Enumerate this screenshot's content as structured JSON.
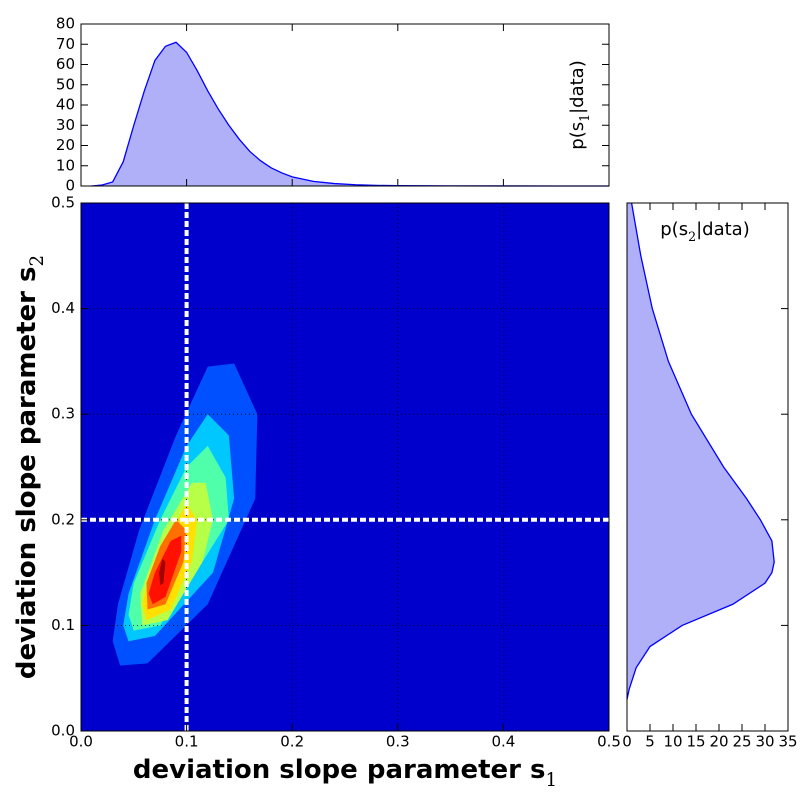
{
  "chart_data": [
    {
      "type": "area",
      "orientation": "vertical",
      "annotation": [
        "p(s",
        "1",
        "|data)"
      ],
      "x": [
        0.01,
        0.02,
        0.03,
        0.04,
        0.05,
        0.06,
        0.07,
        0.08,
        0.09,
        0.1,
        0.11,
        0.12,
        0.13,
        0.14,
        0.15,
        0.16,
        0.17,
        0.18,
        0.19,
        0.2,
        0.22,
        0.24,
        0.26,
        0.28,
        0.3,
        0.35,
        0.4,
        0.45,
        0.5
      ],
      "values": [
        0,
        0.5,
        2,
        12,
        30,
        47,
        62,
        69,
        71,
        66,
        57,
        47,
        38,
        30,
        23,
        17,
        12.5,
        9,
        6.5,
        4.5,
        2.3,
        1.2,
        0.6,
        0.3,
        0.15,
        0.05,
        0.02,
        0.01,
        0
      ],
      "color": "#0000ff",
      "fill": "#b0b0f8",
      "xlim": [
        0,
        0.5
      ],
      "ylim": [
        0,
        80
      ],
      "yticks": [
        0,
        10,
        20,
        30,
        40,
        50,
        60,
        70,
        80
      ]
    },
    {
      "type": "contour",
      "xlabel": [
        "deviation slope parameter s",
        "1"
      ],
      "ylabel": [
        "deviation slope parameter s",
        "2"
      ],
      "xlim": [
        0,
        0.5
      ],
      "ylim": [
        0,
        0.5
      ],
      "xticks": [
        {
          "value": 0,
          "label": "0.0"
        },
        0.1,
        0.2,
        0.3,
        0.4,
        0.5
      ],
      "yticks": [
        {
          "value": 0,
          "label": "0.0"
        },
        0.1,
        0.2,
        0.3,
        0.4,
        0.5
      ],
      "grid": true,
      "background": "#0000cd",
      "reference_lines": {
        "x": 0.1,
        "y": 0.2
      },
      "contours": [
        {
          "color": "#0050ff",
          "x": [
            0.037,
            0.063,
            0.12,
            0.165,
            0.167,
            0.145,
            0.12,
            0.09,
            0.055,
            0.035,
            0.03
          ],
          "y": [
            0.062,
            0.064,
            0.12,
            0.22,
            0.3,
            0.348,
            0.345,
            0.28,
            0.19,
            0.12,
            0.085
          ]
        },
        {
          "color": "#00c8ff",
          "x": [
            0.045,
            0.07,
            0.125,
            0.145,
            0.14,
            0.12,
            0.1,
            0.07,
            0.045,
            0.04
          ],
          "y": [
            0.085,
            0.09,
            0.15,
            0.22,
            0.28,
            0.3,
            0.27,
            0.2,
            0.13,
            0.1
          ]
        },
        {
          "color": "#50ffaa",
          "x": [
            0.05,
            0.075,
            0.115,
            0.14,
            0.137,
            0.12,
            0.1,
            0.075,
            0.05,
            0.045
          ],
          "y": [
            0.095,
            0.1,
            0.16,
            0.2,
            0.24,
            0.27,
            0.25,
            0.2,
            0.14,
            0.11
          ]
        },
        {
          "color": "#b8ff48",
          "x": [
            0.058,
            0.082,
            0.115,
            0.125,
            0.118,
            0.105,
            0.078,
            0.056
          ],
          "y": [
            0.1,
            0.105,
            0.16,
            0.2,
            0.235,
            0.235,
            0.19,
            0.13
          ]
        },
        {
          "color": "#ffe000",
          "x": [
            0.062,
            0.085,
            0.105,
            0.11,
            0.1,
            0.085,
            0.065,
            0.058
          ],
          "y": [
            0.105,
            0.115,
            0.16,
            0.2,
            0.215,
            0.19,
            0.15,
            0.12
          ]
        },
        {
          "color": "#ff7000",
          "x": [
            0.063,
            0.08,
            0.097,
            0.1,
            0.09,
            0.075,
            0.062
          ],
          "y": [
            0.115,
            0.12,
            0.16,
            0.19,
            0.2,
            0.175,
            0.14
          ]
        },
        {
          "color": "#ff1000",
          "x": [
            0.068,
            0.08,
            0.095,
            0.095,
            0.085,
            0.07,
            0.064
          ],
          "y": [
            0.12,
            0.127,
            0.17,
            0.185,
            0.18,
            0.15,
            0.13
          ]
        },
        {
          "color": "#a00000",
          "x": [
            0.075,
            0.078,
            0.08,
            0.077,
            0.074
          ],
          "y": [
            0.138,
            0.14,
            0.16,
            0.163,
            0.15
          ]
        }
      ]
    },
    {
      "type": "area",
      "orientation": "horizontal",
      "annotation": [
        "p(s",
        "2",
        "|data)"
      ],
      "y": [
        0.03,
        0.04,
        0.06,
        0.08,
        0.1,
        0.12,
        0.14,
        0.15,
        0.16,
        0.18,
        0.2,
        0.22,
        0.25,
        0.3,
        0.35,
        0.4,
        0.45,
        0.5
      ],
      "values": [
        0,
        0.5,
        2,
        5,
        12,
        23,
        30,
        31.5,
        32,
        31.5,
        29,
        26,
        21,
        14,
        9,
        5.5,
        3,
        1
      ],
      "color": "#0000ff",
      "fill": "#b0b0f8",
      "xlim": [
        0,
        35
      ],
      "ylim": [
        0,
        0.5
      ],
      "xticks": [
        0,
        5,
        10,
        15,
        20,
        25,
        30,
        35
      ]
    }
  ]
}
